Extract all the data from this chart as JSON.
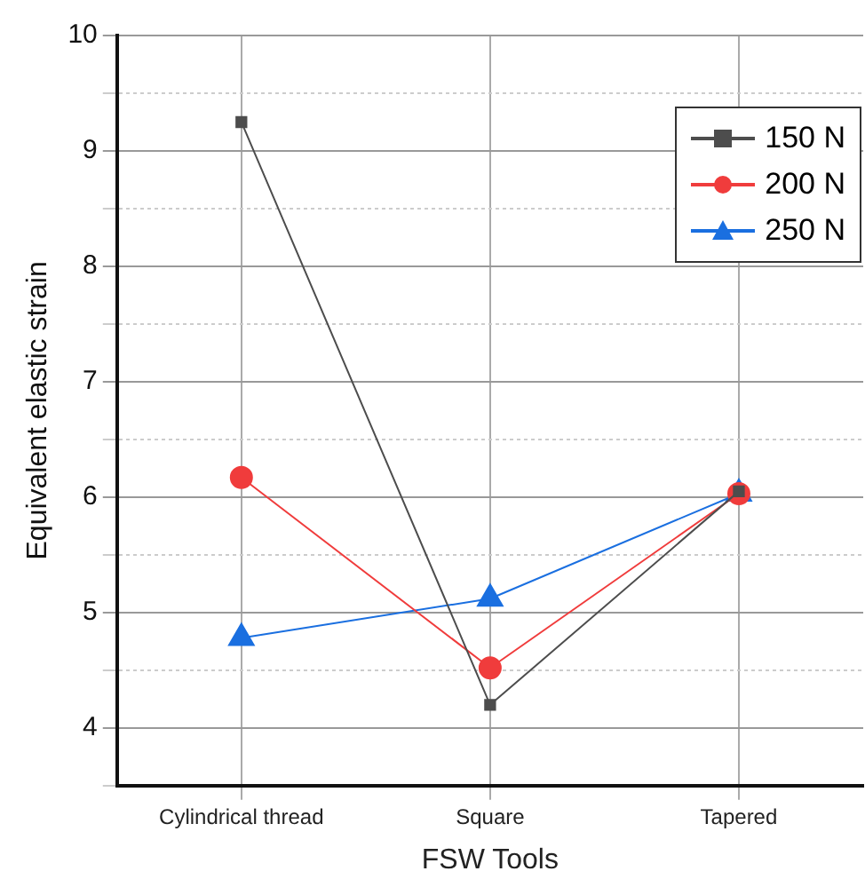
{
  "chart_data": {
    "type": "line",
    "xlabel": "FSW Tools",
    "ylabel": "Equivalent elastic strain",
    "categories": [
      "Cylindrical thread",
      "Square",
      "Tapered"
    ],
    "series": [
      {
        "name": "150 N",
        "color": "#4d4d4d",
        "marker": "square",
        "values": [
          9.25,
          4.2,
          6.05
        ]
      },
      {
        "name": "200 N",
        "color": "#f03c3c",
        "marker": "circle",
        "values": [
          6.17,
          4.52,
          6.03
        ]
      },
      {
        "name": "250 N",
        "color": "#1a6fe0",
        "marker": "triangle",
        "values": [
          4.78,
          5.12,
          6.03
        ]
      }
    ],
    "ylim": [
      3.5,
      10
    ],
    "yticks": [
      {
        "value": 3.5,
        "label": null
      },
      4,
      {
        "value": 4.5,
        "label": null
      },
      5,
      {
        "value": 5.5,
        "label": null
      },
      6,
      {
        "value": 6.5,
        "label": null
      },
      7,
      {
        "value": 7.5,
        "label": null
      },
      8,
      {
        "value": 8.5,
        "label": null
      },
      9,
      {
        "value": 9.5,
        "label": null
      },
      10
    ],
    "grid": true,
    "legend": "top right",
    "line_style": "solid"
  }
}
